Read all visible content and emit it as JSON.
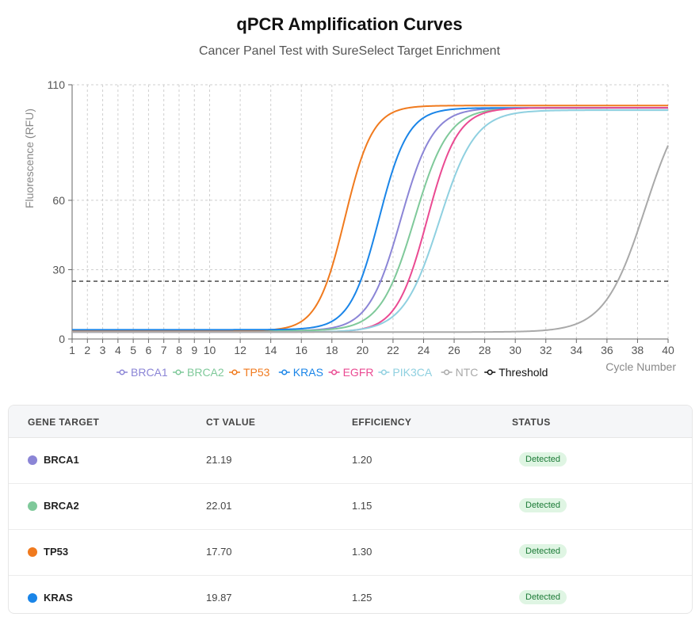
{
  "chart_data": {
    "type": "line",
    "title": "qPCR Amplification Curves",
    "subtitle": "Cancer Panel Test with SureSelect Target Enrichment",
    "xlabel": "Cycle Number",
    "ylabel": "Fluorescence (RFU)",
    "xlim": [
      1,
      40
    ],
    "ylim": [
      0,
      110
    ],
    "x_ticks": [
      1,
      2,
      3,
      4,
      5,
      6,
      7,
      8,
      9,
      10,
      12,
      14,
      16,
      18,
      20,
      22,
      24,
      26,
      28,
      30,
      32,
      34,
      36,
      38,
      40
    ],
    "y_ticks": [
      0,
      30,
      60,
      110
    ],
    "grid": true,
    "legend_position": "bottom",
    "threshold": 25,
    "series": [
      {
        "name": "BRCA1",
        "color": "#8b85d6",
        "baseline": 3.5,
        "plateau": 100,
        "ct": 21.19,
        "steepness": 0.95
      },
      {
        "name": "BRCA2",
        "color": "#7fc99a",
        "baseline": 3.5,
        "plateau": 100,
        "ct": 22.01,
        "steepness": 0.9
      },
      {
        "name": "TP53",
        "color": "#f07a1e",
        "baseline": 3.5,
        "plateau": 101,
        "ct": 17.7,
        "steepness": 1.1
      },
      {
        "name": "KRAS",
        "color": "#1a85e8",
        "baseline": 4.0,
        "plateau": 100,
        "ct": 19.87,
        "steepness": 1.05
      },
      {
        "name": "EGFR",
        "color": "#ea4a92",
        "baseline": 3.0,
        "plateau": 100,
        "ct": 23.0,
        "steepness": 1.0
      },
      {
        "name": "PIK3CA",
        "color": "#8fd0e0",
        "baseline": 3.0,
        "plateau": 99,
        "ct": 23.6,
        "steepness": 0.85
      },
      {
        "name": "NTC",
        "color": "#a9a9a9",
        "baseline": 3.0,
        "plateau": 110,
        "ct": 36.7,
        "steepness": 0.75
      }
    ],
    "legend": [
      "BRCA1",
      "BRCA2",
      "TP53",
      "KRAS",
      "EGFR",
      "PIK3CA",
      "NTC",
      "Threshold"
    ],
    "threshold_color": "#111111"
  },
  "table": {
    "headers": [
      "GENE TARGET",
      "CT VALUE",
      "EFFICIENCY",
      "STATUS"
    ],
    "rows": [
      {
        "gene": "BRCA1",
        "ct": "21.19",
        "efficiency": "1.20",
        "status": "Detected",
        "color": "#8b85d6"
      },
      {
        "gene": "BRCA2",
        "ct": "22.01",
        "efficiency": "1.15",
        "status": "Detected",
        "color": "#7fc99a"
      },
      {
        "gene": "TP53",
        "ct": "17.70",
        "efficiency": "1.30",
        "status": "Detected",
        "color": "#f07a1e"
      },
      {
        "gene": "KRAS",
        "ct": "19.87",
        "efficiency": "1.25",
        "status": "Detected",
        "color": "#1a85e8"
      }
    ]
  }
}
